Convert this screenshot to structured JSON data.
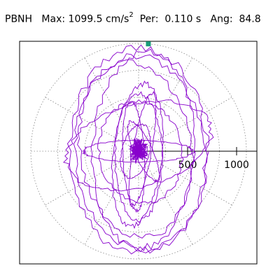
{
  "header": {
    "station": "PBNH",
    "max_label": "Max:",
    "max_value": "1099.5",
    "max_unit": "cm/s",
    "max_unit_exp": "2",
    "per_label": "Per:",
    "per_value": "0.110 s",
    "ang_label": "Ang:",
    "ang_value": "84.8"
  },
  "chart_data": {
    "type": "scatter",
    "description_units": "cm/s^2",
    "axis": {
      "range_max": 1100,
      "tick_values": [
        500,
        1000
      ],
      "tick_labels": [
        "500",
        "1000"
      ],
      "grid": "dotted polar rings and radial spokes"
    },
    "peak_marker": {
      "amplitude": 1099.5,
      "angle_deg": 84.8,
      "color": "#1a9c7a"
    },
    "trace_color": "#8800cc",
    "loops": [
      {
        "a": 700,
        "b": 1050,
        "rot": 0,
        "cx": 0,
        "cy": 0
      },
      {
        "a": 660,
        "b": 990,
        "rot": 4,
        "cx": 20,
        "cy": -20
      },
      {
        "a": 520,
        "b": 1000,
        "rot": -3,
        "cx": 50,
        "cy": 10
      },
      {
        "a": 570,
        "b": 900,
        "rot": 8,
        "cx": -30,
        "cy": 20
      },
      {
        "a": 760,
        "b": 420,
        "rot": 15,
        "cx": 0,
        "cy": 60
      },
      {
        "a": 560,
        "b": 110,
        "rot": 0,
        "cx": 0,
        "cy": 0
      },
      {
        "a": 420,
        "b": 520,
        "rot": 10,
        "cx": 20,
        "cy": -10
      },
      {
        "a": 110,
        "b": 560,
        "rot": 3,
        "cx": -50,
        "cy": -50
      },
      {
        "a": 95,
        "b": 580,
        "rot": -10,
        "cx": 40,
        "cy": 20
      },
      {
        "a": 240,
        "b": 650,
        "rot": 0,
        "cx": 0,
        "cy": -60
      },
      {
        "a": 250,
        "b": 730,
        "rot": -6,
        "cx": -10,
        "cy": -40
      },
      {
        "a": 90,
        "b": 330,
        "rot": 25,
        "cx": 50,
        "cy": 0
      },
      {
        "a": 140,
        "b": 280,
        "rot": -15,
        "cx": -30,
        "cy": 0
      }
    ],
    "core_scatter_radius": 150
  }
}
